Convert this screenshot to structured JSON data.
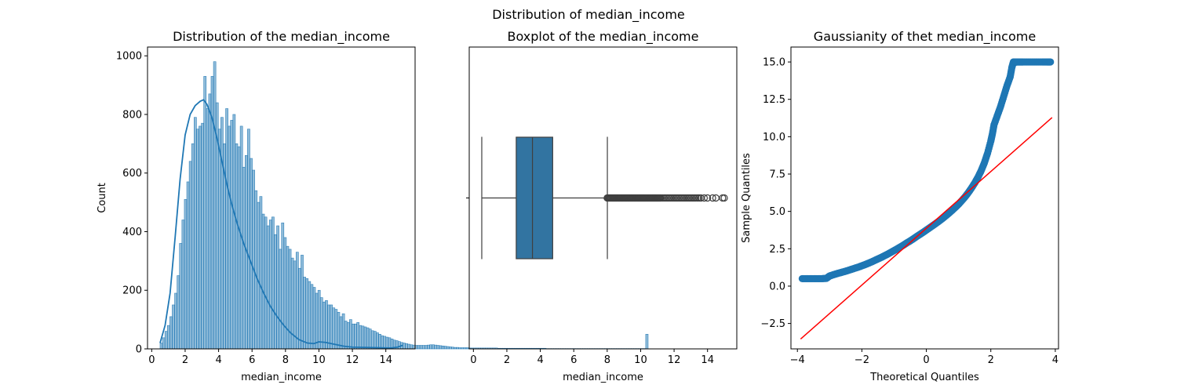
{
  "figure": {
    "suptitle": "Distribution of median_income"
  },
  "chart_data": [
    {
      "type": "bar",
      "kind": "histogram_with_kde",
      "title": "Distribution of the median_income",
      "xlabel": "median_income",
      "ylabel": "Count",
      "xlim": [
        -0.25,
        15.75
      ],
      "ylim": [
        0,
        1030
      ],
      "xticks": [
        0,
        2,
        4,
        6,
        8,
        10,
        12,
        14
      ],
      "yticks": [
        0,
        200,
        400,
        600,
        800,
        1000
      ],
      "bin_start": 0.4999,
      "bin_width": 0.1452,
      "values": [
        20,
        38,
        60,
        80,
        110,
        150,
        190,
        250,
        360,
        440,
        510,
        570,
        640,
        700,
        790,
        750,
        760,
        770,
        930,
        820,
        870,
        930,
        980,
        840,
        750,
        790,
        700,
        820,
        760,
        780,
        800,
        700,
        690,
        760,
        620,
        660,
        750,
        650,
        610,
        540,
        500,
        520,
        460,
        450,
        420,
        440,
        450,
        390,
        420,
        340,
        430,
        380,
        350,
        340,
        310,
        300,
        330,
        275,
        320,
        245,
        240,
        230,
        220,
        210,
        190,
        200,
        175,
        160,
        165,
        150,
        150,
        140,
        135,
        125,
        110,
        120,
        95,
        90,
        100,
        85,
        85,
        90,
        80,
        78,
        75,
        72,
        68,
        62,
        60,
        55,
        50,
        45,
        43,
        40,
        38,
        34,
        30,
        28,
        25,
        22,
        20,
        18,
        16,
        14,
        13,
        12,
        12,
        12,
        12,
        12,
        13,
        14,
        14,
        13,
        12,
        11,
        10,
        9,
        8,
        7,
        6,
        5,
        5,
        4,
        4,
        4,
        4,
        3,
        3,
        3,
        3,
        3,
        3,
        3,
        3,
        3,
        3,
        3,
        3,
        2,
        2,
        2,
        2,
        2,
        2,
        2,
        2,
        2,
        2,
        2,
        2,
        2,
        2,
        2,
        2,
        2,
        2,
        2,
        2,
        1,
        1,
        1,
        1,
        1,
        1,
        1,
        1,
        1,
        1,
        1,
        1,
        1,
        1,
        1,
        1,
        1,
        1,
        1,
        1,
        1,
        1,
        1,
        1,
        1,
        1,
        1,
        1,
        1,
        1,
        1,
        1,
        1,
        1,
        1,
        1,
        1,
        1,
        1,
        1,
        1,
        50
      ],
      "kde": {
        "x": [
          0.5,
          0.8,
          1.1,
          1.4,
          1.7,
          2.0,
          2.3,
          2.6,
          2.9,
          3.1,
          3.3,
          3.6,
          3.9,
          4.2,
          4.5,
          4.8,
          5.1,
          5.5,
          5.9,
          6.3,
          6.7,
          7.1,
          7.5,
          7.9,
          8.3,
          8.8,
          9.3,
          9.7,
          10.0,
          10.4,
          10.9,
          11.5,
          12.0,
          12.8,
          13.6,
          14.3,
          14.7,
          15.0
        ],
        "y": [
          20,
          80,
          190,
          380,
          580,
          730,
          800,
          830,
          845,
          850,
          835,
          790,
          720,
          640,
          560,
          490,
          430,
          360,
          300,
          240,
          190,
          145,
          110,
          80,
          55,
          32,
          20,
          18,
          24,
          22,
          16,
          9,
          6,
          5,
          4,
          3,
          6,
          12
        ]
      },
      "color": "#1f77b4"
    },
    {
      "type": "box",
      "title": "Boxplot of the median_income",
      "xlabel": "median_income",
      "xlim": [
        -0.25,
        15.75
      ],
      "xticks": [
        0,
        2,
        4,
        6,
        8,
        10,
        12,
        14
      ],
      "stats": {
        "whislo": 0.5,
        "q1": 2.56,
        "median": 3.53,
        "q3": 4.74,
        "whishi": 8.01
      },
      "fliers": [
        8.0,
        8.05,
        8.1,
        8.15,
        8.2,
        8.25,
        8.3,
        8.35,
        8.4,
        8.45,
        8.5,
        8.55,
        8.6,
        8.65,
        8.7,
        8.75,
        8.8,
        8.85,
        8.9,
        8.95,
        9.0,
        9.05,
        9.1,
        9.15,
        9.2,
        9.25,
        9.3,
        9.35,
        9.4,
        9.45,
        9.5,
        9.55,
        9.6,
        9.65,
        9.7,
        9.75,
        9.8,
        9.85,
        9.9,
        9.95,
        10.0,
        10.05,
        10.1,
        10.15,
        10.2,
        10.25,
        10.3,
        10.35,
        10.4,
        10.45,
        10.5,
        10.55,
        10.6,
        10.65,
        10.7,
        10.75,
        10.8,
        10.85,
        10.9,
        10.95,
        11.0,
        11.05,
        11.1,
        11.15,
        11.2,
        11.3,
        11.4,
        11.5,
        11.6,
        11.7,
        11.8,
        11.9,
        12.0,
        12.1,
        12.2,
        12.3,
        12.4,
        12.5,
        12.6,
        12.7,
        12.8,
        12.9,
        13.0,
        13.1,
        13.2,
        13.3,
        13.4,
        13.5,
        13.6,
        13.8,
        14.0,
        14.3,
        14.5,
        14.9,
        15.0
      ],
      "color": "#3274a1"
    },
    {
      "type": "scatter",
      "kind": "qq_plot",
      "title": "Gaussianity of thet  median_income",
      "xlabel": "Theoretical Quantiles",
      "ylabel": "Sample Quantiles",
      "xlim": [
        -4.2,
        4.1
      ],
      "ylim": [
        -4.2,
        16.0
      ],
      "xticks": [
        -4,
        -2,
        0,
        2,
        4
      ],
      "yticks": [
        -2.5,
        0.0,
        2.5,
        5.0,
        7.5,
        10.0,
        12.5,
        15.0
      ],
      "ytick_labels": [
        "−2.5",
        "0.0",
        "2.5",
        "5.0",
        "7.5",
        "10.0",
        "12.5",
        "15.0"
      ],
      "xtick_labels": [
        "−4",
        "−2",
        "0",
        "2",
        "4"
      ],
      "points": {
        "x": [
          -3.85,
          -3.7,
          -3.55,
          -3.4,
          -3.25,
          -3.1,
          -3.05,
          -3.0,
          -2.9,
          -2.8,
          -2.7,
          -2.6,
          -2.5,
          -2.4,
          -2.3,
          -2.2,
          -2.1,
          -2.0,
          -1.9,
          -1.8,
          -1.7,
          -1.6,
          -1.5,
          -1.4,
          -1.3,
          -1.2,
          -1.1,
          -1.0,
          -0.9,
          -0.8,
          -0.7,
          -0.6,
          -0.5,
          -0.4,
          -0.3,
          -0.2,
          -0.1,
          0.0,
          0.1,
          0.2,
          0.3,
          0.4,
          0.5,
          0.6,
          0.7,
          0.8,
          0.9,
          1.0,
          1.1,
          1.2,
          1.3,
          1.4,
          1.5,
          1.6,
          1.7,
          1.8,
          1.9,
          2.0,
          2.05,
          2.1,
          2.2,
          2.3,
          2.4,
          2.5,
          2.6,
          2.65,
          2.7,
          2.75,
          2.78,
          2.8,
          2.9,
          3.0,
          3.2,
          3.4,
          3.6,
          3.75,
          3.85
        ],
        "y": [
          0.5,
          0.5,
          0.5,
          0.5,
          0.5,
          0.52,
          0.6,
          0.68,
          0.75,
          0.82,
          0.88,
          0.94,
          1.0,
          1.07,
          1.14,
          1.21,
          1.28,
          1.36,
          1.44,
          1.53,
          1.62,
          1.72,
          1.82,
          1.92,
          2.03,
          2.14,
          2.26,
          2.38,
          2.5,
          2.63,
          2.76,
          2.9,
          3.03,
          3.17,
          3.32,
          3.46,
          3.6,
          3.75,
          3.9,
          4.05,
          4.2,
          4.36,
          4.52,
          4.7,
          4.88,
          5.07,
          5.27,
          5.48,
          5.72,
          5.97,
          6.25,
          6.56,
          6.9,
          7.28,
          7.72,
          8.25,
          8.9,
          9.7,
          10.2,
          10.8,
          11.4,
          12.0,
          12.7,
          13.4,
          14.0,
          14.6,
          15.0,
          15.0,
          15.0,
          15.0,
          15.0,
          15.0,
          15.0,
          15.0,
          15.0,
          15.0,
          15.0
        ]
      },
      "reference_line": {
        "slope": 1.9,
        "intercept": 3.87,
        "x": [
          -3.9,
          3.9
        ]
      },
      "point_color": "#1f77b4",
      "line_color": "#ff0000"
    }
  ]
}
